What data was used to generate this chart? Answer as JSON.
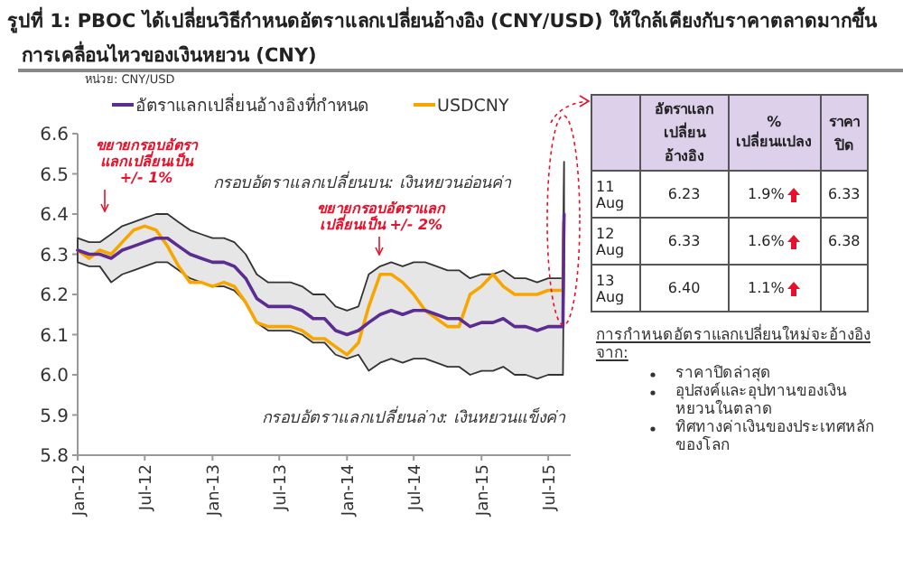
{
  "chart_data": [
    {
      "type": "line",
      "title": "รูปที่ 1: PBOC ได้เปลี่ยนวิธีกำหนดอัตราแลกเปลี่ยนอ้างอิง (CNY/USD) ให้ใกล้เคียงกับราคาตลาดมากขึ้น",
      "subtitle": "การเคลื่อนไหวของเงินหยวน (CNY)",
      "x": [
        "2012-01",
        "2012-02",
        "2012-03",
        "2012-04",
        "2012-05",
        "2012-06",
        "2012-07",
        "2012-08",
        "2012-09",
        "2012-10",
        "2012-11",
        "2012-12",
        "2013-01",
        "2013-02",
        "2013-03",
        "2013-04",
        "2013-05",
        "2013-06",
        "2013-07",
        "2013-08",
        "2013-09",
        "2013-10",
        "2013-11",
        "2013-12",
        "2014-01",
        "2014-02",
        "2014-03",
        "2014-04",
        "2014-05",
        "2014-06",
        "2014-07",
        "2014-08",
        "2014-09",
        "2014-10",
        "2014-11",
        "2014-12",
        "2015-01",
        "2015-02",
        "2015-03",
        "2015-04",
        "2015-05",
        "2015-06",
        "2015-07",
        "2015-08-10",
        "2015-08-11",
        "2015-08-12",
        "2015-08-13"
      ],
      "series": [
        {
          "name": "อัตราแลกเปลี่ยนอ้างอิงที่กำหนด",
          "color": "#5c2d91",
          "values": [
            6.31,
            6.3,
            6.3,
            6.29,
            6.31,
            6.32,
            6.33,
            6.34,
            6.34,
            6.32,
            6.3,
            6.29,
            6.28,
            6.28,
            6.27,
            6.24,
            6.19,
            6.17,
            6.17,
            6.17,
            6.16,
            6.14,
            6.14,
            6.11,
            6.1,
            6.11,
            6.13,
            6.15,
            6.16,
            6.15,
            6.16,
            6.16,
            6.15,
            6.14,
            6.14,
            6.12,
            6.13,
            6.13,
            6.14,
            6.12,
            6.12,
            6.11,
            6.12,
            6.12,
            6.23,
            6.33,
            6.4
          ],
          "upper": [
            6.34,
            6.33,
            6.33,
            6.35,
            6.37,
            6.38,
            6.39,
            6.4,
            6.4,
            6.38,
            6.36,
            6.35,
            6.34,
            6.34,
            6.33,
            6.3,
            6.25,
            6.23,
            6.23,
            6.23,
            6.22,
            6.2,
            6.2,
            6.17,
            6.16,
            6.17,
            6.25,
            6.27,
            6.28,
            6.27,
            6.28,
            6.28,
            6.27,
            6.26,
            6.26,
            6.24,
            6.25,
            6.25,
            6.26,
            6.24,
            6.24,
            6.23,
            6.24,
            6.24,
            6.35,
            6.46,
            6.53
          ],
          "lower": [
            6.28,
            6.27,
            6.27,
            6.23,
            6.25,
            6.26,
            6.27,
            6.28,
            6.28,
            6.26,
            6.24,
            6.23,
            6.22,
            6.22,
            6.21,
            6.18,
            6.13,
            6.11,
            6.11,
            6.11,
            6.1,
            6.08,
            6.08,
            6.05,
            6.04,
            6.05,
            6.01,
            6.03,
            6.04,
            6.03,
            6.04,
            6.04,
            6.03,
            6.02,
            6.02,
            6.0,
            6.01,
            6.01,
            6.02,
            6.0,
            6.0,
            5.99,
            6.0,
            6.0,
            6.11,
            6.2,
            6.27
          ]
        },
        {
          "name": "USDCNY",
          "color": "#f7a600",
          "values": [
            6.31,
            6.29,
            6.31,
            6.3,
            6.33,
            6.36,
            6.37,
            6.36,
            6.32,
            6.27,
            6.23,
            6.23,
            6.22,
            6.23,
            6.22,
            6.18,
            6.13,
            6.12,
            6.12,
            6.12,
            6.11,
            6.09,
            6.09,
            6.07,
            6.05,
            6.08,
            6.17,
            6.25,
            6.25,
            6.23,
            6.2,
            6.16,
            6.14,
            6.12,
            6.12,
            6.2,
            6.22,
            6.25,
            6.22,
            6.2,
            6.2,
            6.2,
            6.21,
            6.21,
            6.33,
            6.38,
            null
          ]
        }
      ],
      "xlim": [
        "2012-01-01",
        "2015-08-31"
      ],
      "xticks": [
        {
          "value": "2012-01-01",
          "label": "Jan-12"
        },
        {
          "value": "2012-07-01",
          "label": "Jul-12"
        },
        {
          "value": "2013-01-01",
          "label": "Jan-13"
        },
        {
          "value": "2013-07-01",
          "label": "Jul-13"
        },
        {
          "value": "2014-01-01",
          "label": "Jan-14"
        },
        {
          "value": "2014-07-01",
          "label": "Jul-14"
        },
        {
          "value": "2015-01-01",
          "label": "Jan-15"
        },
        {
          "value": "2015-07-01",
          "label": "Jul-15"
        }
      ],
      "ylim": [
        5.8,
        6.6
      ],
      "yticks": [
        {
          "value": 5.8,
          "label": "5.8"
        },
        {
          "value": 5.9,
          "label": "5.9"
        },
        {
          "value": 6.0,
          "label": "6.0"
        },
        {
          "value": 6.1,
          "label": "6.1"
        },
        {
          "value": 6.2,
          "label": "6.2"
        },
        {
          "value": 6.3,
          "label": "6.3"
        },
        {
          "value": 6.4,
          "label": "6.4"
        },
        {
          "value": 6.5,
          "label": "6.5"
        },
        {
          "value": 6.6,
          "label": "6.6"
        }
      ],
      "legend": "top",
      "annotations": [
        "หน่วย: CNY/USD",
        "กรอบอัตราแลกเปลี่ยนบน: เงินหยวนอ่อนค่า",
        "กรอบอัตราแลกเปลี่ยนล่าง: เงินหยวนแข็งค่า",
        "ขยายกรอบอัตราแลกเปลี่ยนเป็น +/- 1%",
        "ขยายกรอบอัตราแลกเปลี่ยนเป็น +/- 2%"
      ]
    },
    {
      "type": "other",
      "categories": [
        "11 Aug",
        "12 Aug",
        "13 Aug"
      ],
      "series": [
        {
          "name": "อัตราแลกเปลี่ยนอ้างอิง",
          "values": [
            6.23,
            6.33,
            6.4
          ],
          "value_labels": [
            "6.23",
            "6.33",
            "6.40"
          ]
        },
        {
          "name": "% เปลี่ยนแปลง",
          "values": [
            1.9,
            1.6,
            1.1
          ],
          "value_labels": [
            "1.9%",
            "1.6%",
            "1.1%"
          ]
        },
        {
          "name": "ราคาปิด",
          "values": [
            6.33,
            6.38,
            null
          ],
          "value_labels": [
            "6.33",
            "6.38",
            null
          ]
        }
      ],
      "annotations": [
        "การกำหนดอัตราแลกเปลี่ยนใหม่จะอ้างอิงจาก:",
        "ราคาปิดล่าสุด",
        "อุปสงค์และอุปทานของเงินหยวนในตลาด",
        "ทิศทางค่าเงินของประเทศหลักของโลก"
      ]
    }
  ]
}
